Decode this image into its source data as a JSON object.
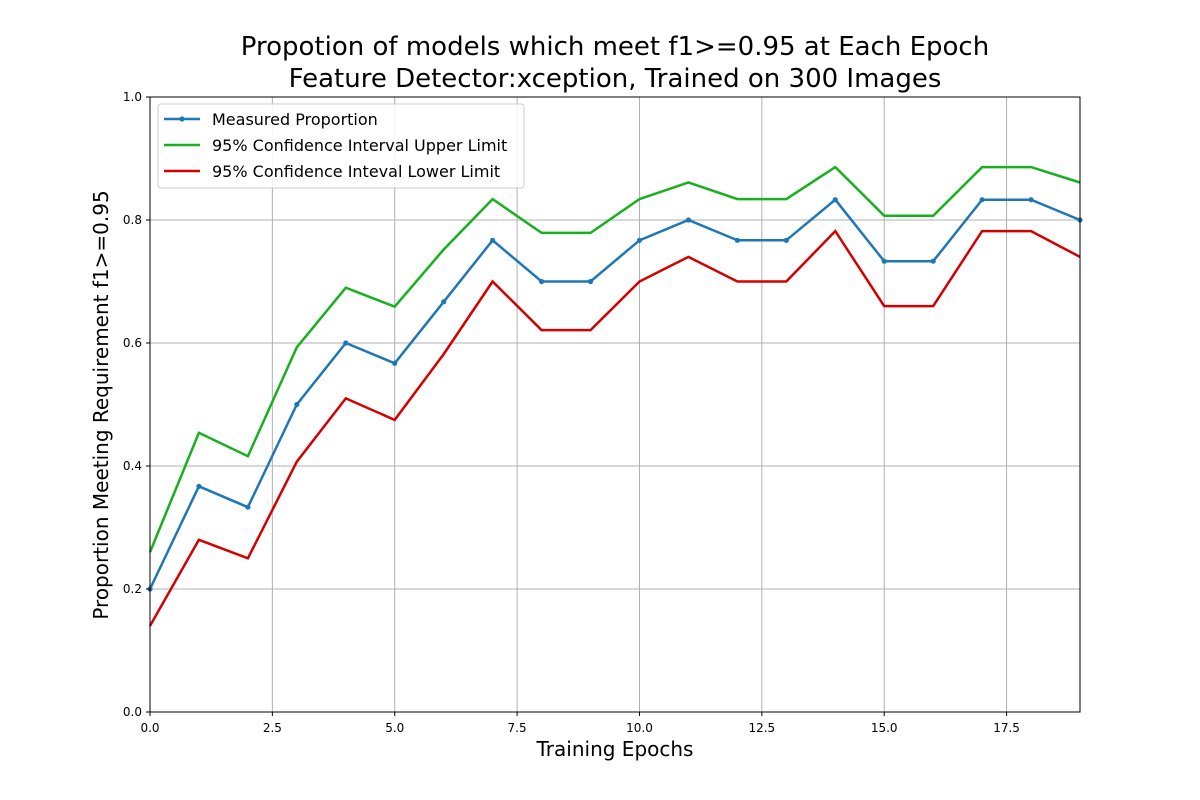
{
  "chart_data": {
    "type": "line",
    "title": "Propotion of models which meet f1>=0.95 at Each Epoch",
    "subtitle": "Feature Detector:xception, Trained on 300 Images",
    "xlabel": "Training Epochs",
    "ylabel": "Proportion Meeting Requirement f1>=0.95",
    "xlim": [
      0,
      19
    ],
    "ylim": [
      0.0,
      1.0
    ],
    "x_ticks": [
      0.0,
      2.5,
      5.0,
      7.5,
      10.0,
      12.5,
      15.0,
      17.5
    ],
    "x_tick_labels": [
      "0.0",
      "2.5",
      "5.0",
      "7.5",
      "10.0",
      "12.5",
      "15.0",
      "17.5"
    ],
    "y_ticks": [
      0.0,
      0.2,
      0.4,
      0.6,
      0.8,
      1.0
    ],
    "y_tick_labels": [
      "0.0",
      "0.2",
      "0.4",
      "0.6",
      "0.8",
      "1.0"
    ],
    "grid": true,
    "legend_position": "top-left",
    "x": [
      0,
      1,
      2,
      3,
      4,
      5,
      6,
      7,
      8,
      9,
      10,
      11,
      12,
      13,
      14,
      15,
      16,
      17,
      18,
      19
    ],
    "series": [
      {
        "name": "Measured Proportion",
        "color": "#1f77b4",
        "marker": "circle",
        "values": [
          0.2,
          0.367,
          0.333,
          0.5,
          0.6,
          0.567,
          0.667,
          0.767,
          0.7,
          0.7,
          0.767,
          0.8,
          0.767,
          0.767,
          0.833,
          0.733,
          0.733,
          0.833,
          0.833,
          0.8
        ]
      },
      {
        "name": "95% Confidence Interval Upper Limit",
        "color": "#17b01f",
        "marker": "none",
        "values": [
          0.26,
          0.454,
          0.416,
          0.593,
          0.69,
          0.659,
          0.752,
          0.834,
          0.779,
          0.779,
          0.834,
          0.861,
          0.834,
          0.834,
          0.886,
          0.807,
          0.807,
          0.886,
          0.886,
          0.861
        ]
      },
      {
        "name": "95% Confidence Inteval Lower Limit",
        "color": "#d40000",
        "marker": "none",
        "values": [
          0.14,
          0.28,
          0.25,
          0.407,
          0.51,
          0.475,
          0.582,
          0.7,
          0.621,
          0.621,
          0.7,
          0.74,
          0.7,
          0.7,
          0.782,
          0.66,
          0.66,
          0.782,
          0.782,
          0.74
        ]
      }
    ]
  }
}
